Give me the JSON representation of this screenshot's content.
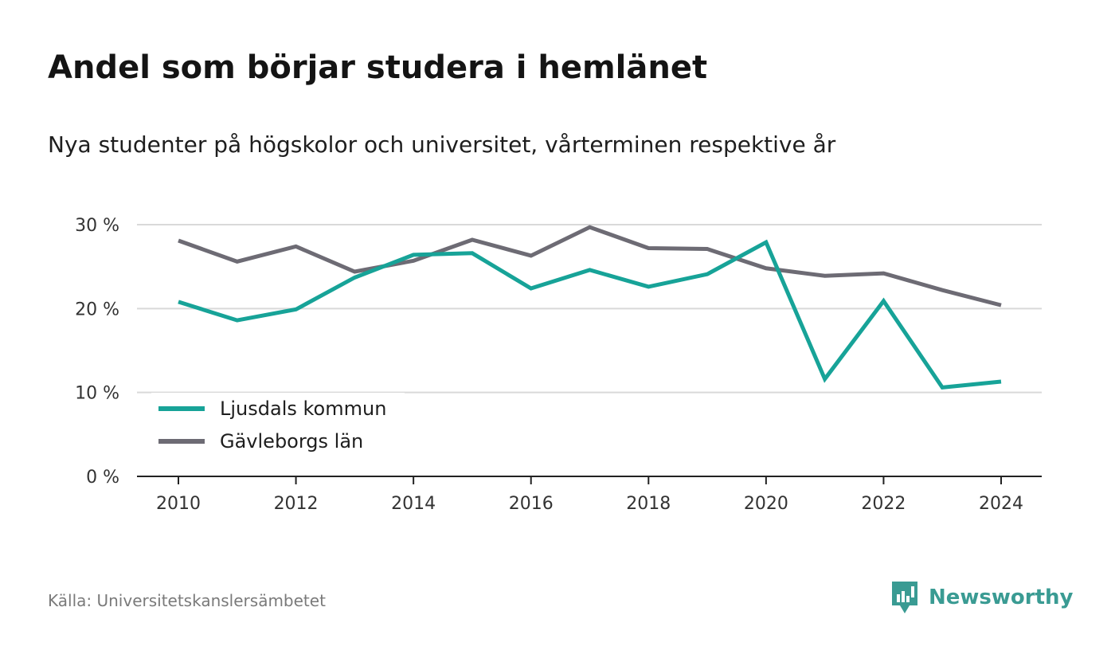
{
  "header": {
    "title": "Andel som börjar studera i hemlänet",
    "subtitle": "Nya studenter på högskolor och universitet, vårterminen respektive år"
  },
  "footer": {
    "source": "Källa: Universitetskanslersämbetet",
    "brand": "Newsworthy"
  },
  "colors": {
    "brand": "#3a9b93",
    "series_primary": "#17a398",
    "series_secondary": "#6d6b74",
    "grid": "#d9d9d9",
    "axis": "#222222"
  },
  "chart_data": {
    "type": "line",
    "x": [
      2010,
      2011,
      2012,
      2013,
      2014,
      2015,
      2016,
      2017,
      2018,
      2019,
      2020,
      2021,
      2022,
      2023,
      2024
    ],
    "xticks": [
      "2010",
      "2012",
      "2014",
      "2016",
      "2018",
      "2020",
      "2022",
      "2024"
    ],
    "yticks": [
      "0 %",
      "10 %",
      "20 %",
      "30 %"
    ],
    "ylim": [
      0,
      30
    ],
    "grid": true,
    "legend_position": "bottom-left",
    "series": [
      {
        "name": "Ljusdals kommun",
        "color": "#17a398",
        "values": [
          20.8,
          18.6,
          19.9,
          23.7,
          26.4,
          26.6,
          22.4,
          24.6,
          22.6,
          24.1,
          27.9,
          11.6,
          20.9,
          10.6,
          11.3
        ]
      },
      {
        "name": "Gävleborgs län",
        "color": "#6d6b74",
        "values": [
          28.1,
          25.6,
          27.4,
          24.4,
          25.7,
          28.2,
          26.3,
          29.7,
          27.2,
          27.1,
          24.8,
          23.9,
          24.2,
          22.2,
          20.4
        ]
      }
    ]
  }
}
